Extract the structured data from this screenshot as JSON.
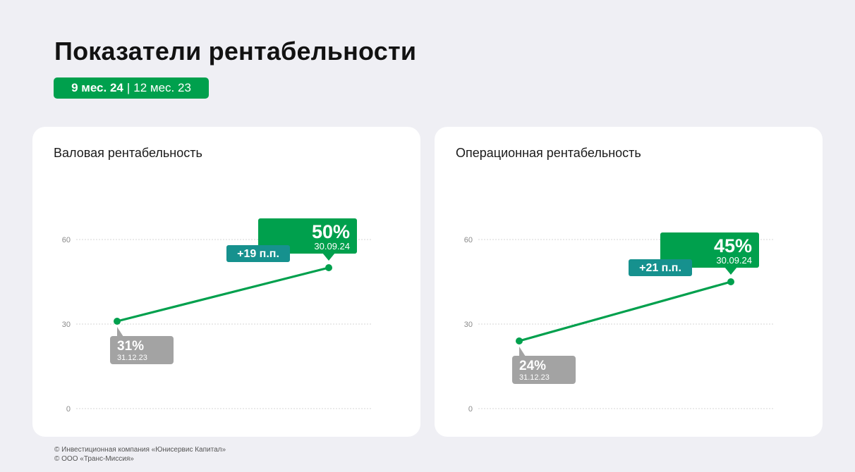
{
  "page": {
    "title": "Показатели рентабельности",
    "period_current": "9 мес. 24",
    "period_separator": "|",
    "period_previous": "12 мес. 23"
  },
  "colors": {
    "accent_green": "#00a04d",
    "teal": "#16918e",
    "gray_label": "#a3a3a3",
    "background": "#efeff4"
  },
  "chart_data": [
    {
      "type": "line",
      "title": "Валовая рентабельность",
      "ylim": [
        0,
        60
      ],
      "yticks": [
        0,
        30,
        60
      ],
      "grid": true,
      "x": [
        "31.12.23",
        "30.09.24"
      ],
      "series": [
        {
          "values": [
            31,
            50
          ]
        }
      ],
      "labels": [
        {
          "value": "31%",
          "date": "31.12.23"
        },
        {
          "value": "50%",
          "date": "30.09.24"
        }
      ],
      "change": "+19 п.п."
    },
    {
      "type": "line",
      "title": "Операционная рентабельность",
      "ylim": [
        0,
        60
      ],
      "yticks": [
        0,
        30,
        60
      ],
      "grid": true,
      "x": [
        "31.12.23",
        "30.09.24"
      ],
      "series": [
        {
          "values": [
            24,
            45
          ]
        }
      ],
      "labels": [
        {
          "value": "24%",
          "date": "31.12.23"
        },
        {
          "value": "45%",
          "date": "30.09.24"
        }
      ],
      "change": "+21 п.п."
    }
  ],
  "footer": {
    "line1": "© Инвестиционная компания «Юнисервис Капитал»",
    "line2": "© ООО «Транс-Миссия»"
  }
}
